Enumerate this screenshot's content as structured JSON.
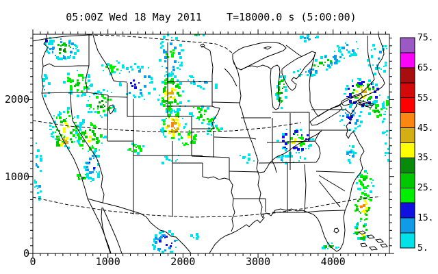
{
  "title": "05:00Z Wed 18 May 2011    T=18000.0 s (5:00:00)",
  "axes": {
    "x": {
      "min": 0,
      "max": 4750,
      "major_ticks": [
        0,
        1000,
        2000,
        3000,
        4000
      ],
      "major_labels": [
        "0",
        "1000",
        "2000",
        "3000",
        "4000"
      ],
      "minor_step": 100
    },
    "y": {
      "min": 0,
      "max": 2850,
      "major_ticks": [
        0,
        1000,
        2000
      ],
      "major_labels": [
        "0",
        "1000",
        "2000"
      ],
      "minor_step": 100
    }
  },
  "colorbar": {
    "tick_values": [
      5,
      15,
      25,
      35,
      45,
      55,
      65,
      75
    ],
    "tick_labels": [
      "5.",
      "15.",
      "25.",
      "35.",
      "45.",
      "55.",
      "65.",
      "75."
    ],
    "bin_edges": [
      5,
      10,
      15,
      20,
      25,
      30,
      35,
      40,
      45,
      50,
      55,
      60,
      65,
      70,
      75
    ],
    "bin_colors": [
      "#00E1E8",
      "#0F9BE6",
      "#1010E0",
      "#00EE00",
      "#00C800",
      "#0A8A0A",
      "#FFFF00",
      "#D4AF14",
      "#FB8612",
      "#FF0000",
      "#D40A0A",
      "#A80E0E",
      "#FA04FA",
      "#9B59C6"
    ]
  },
  "palette": {
    "c5": "#00E1E8",
    "c10": "#0F9BE6",
    "c15": "#1010E0",
    "c20": "#00EE00",
    "c25": "#00C800",
    "c30": "#0A8A0A",
    "c35": "#FFFF00",
    "c40": "#D4AF14",
    "c45": "#FB8612",
    "c50": "#FF0000",
    "c55": "#D40A0A",
    "c60": "#A80E0E",
    "c65": "#FA04FA",
    "c70": "#9B59C6"
  },
  "chart_data": {
    "type": "heatmap",
    "title": "05:00Z Wed 18 May 2011    T=18000.0 s (5:00:00)",
    "xlabel": "",
    "ylabel": "",
    "x_range": [
      0,
      4750
    ],
    "y_range": [
      0,
      2850
    ],
    "x_ticks": [
      0,
      1000,
      2000,
      3000,
      4000
    ],
    "y_ticks": [
      0,
      1000,
      2000
    ],
    "grid": false,
    "legend_position": "right-colorbar",
    "field": "radar reflectivity (dBZ) over CONUS state map",
    "colorbar_range": [
      5,
      75
    ],
    "colorbar_step": 5,
    "echo_regions": [
      {
        "name": "washington",
        "x": 383,
        "y": 2676,
        "max_dbz": 30
      },
      {
        "name": "oregon-idaho",
        "x": 700,
        "y": 2300,
        "max_dbz": 30
      },
      {
        "name": "nevada-utah",
        "x": 583,
        "y": 1517,
        "max_dbz": 40
      },
      {
        "name": "arizona-utah-border",
        "x": 775,
        "y": 1160,
        "max_dbz": 20
      },
      {
        "name": "montana",
        "x": 1368,
        "y": 2290,
        "max_dbz": 20
      },
      {
        "name": "wyoming-colorado-nebraska-band",
        "x": 1842,
        "y": 2052,
        "max_dbz": 48
      },
      {
        "name": "colorado-kansas",
        "x": 2051,
        "y": 1506,
        "max_dbz": 40
      },
      {
        "name": "new-mexico",
        "x": 1349,
        "y": 1383,
        "max_dbz": 25
      },
      {
        "name": "south-texas",
        "x": 1751,
        "y": 161,
        "max_dbz": 28
      },
      {
        "name": "lake-michigan-band",
        "x": 3301,
        "y": 2123,
        "max_dbz": 30
      },
      {
        "name": "lake-huron-diagonal-band",
        "x": 3830,
        "y": 2480,
        "max_dbz": 28
      },
      {
        "name": "ohio-valley",
        "x": 3483,
        "y": 1481,
        "max_dbz": 38
      },
      {
        "name": "northeast-cluster",
        "x": 4377,
        "y": 2105,
        "max_dbz": 45
      },
      {
        "name": "atlantic-coast-band",
        "x": 4395,
        "y": 625,
        "max_dbz": 48
      },
      {
        "name": "south-florida",
        "x": 3939,
        "y": 125,
        "max_dbz": 28
      },
      {
        "name": "maine-new-brunswick",
        "x": 4595,
        "y": 2542,
        "max_dbz": 15
      }
    ],
    "render_blobs": [
      {
        "cx": 90,
        "cy": 70,
        "w": 46,
        "h": 34,
        "n": 60,
        "colors": [
          "c5",
          "c10",
          "c25",
          "c30"
        ]
      },
      {
        "cx": 68,
        "cy": 58,
        "w": 16,
        "h": 14,
        "n": 12,
        "colors": [
          "c5",
          "c15"
        ]
      },
      {
        "cx": 112,
        "cy": 120,
        "w": 44,
        "h": 38,
        "n": 45,
        "colors": [
          "c5",
          "c20",
          "c25"
        ]
      },
      {
        "cx": 66,
        "cy": 122,
        "w": 10,
        "h": 36,
        "n": 14,
        "colors": [
          "c5",
          "c10"
        ]
      },
      {
        "cx": 146,
        "cy": 150,
        "w": 48,
        "h": 40,
        "n": 50,
        "colors": [
          "c5",
          "c20",
          "c30"
        ]
      },
      {
        "cx": 198,
        "cy": 118,
        "w": 56,
        "h": 56,
        "n": 40,
        "colors": [
          "c5",
          "c10",
          "c15"
        ]
      },
      {
        "cx": 162,
        "cy": 96,
        "w": 36,
        "h": 22,
        "n": 22,
        "colors": [
          "c5",
          "c20"
        ]
      },
      {
        "cx": 95,
        "cy": 185,
        "w": 48,
        "h": 58,
        "n": 75,
        "colors": [
          "c5",
          "c20",
          "c25",
          "c35"
        ]
      },
      {
        "cx": 92,
        "cy": 205,
        "w": 26,
        "h": 20,
        "n": 22,
        "colors": [
          "c25",
          "c35",
          "c40"
        ]
      },
      {
        "cx": 130,
        "cy": 198,
        "w": 44,
        "h": 54,
        "n": 65,
        "colors": [
          "c5",
          "c20",
          "c25",
          "c35"
        ]
      },
      {
        "cx": 133,
        "cy": 240,
        "w": 24,
        "h": 48,
        "n": 40,
        "colors": [
          "c5",
          "c10",
          "c15"
        ]
      },
      {
        "cx": 118,
        "cy": 257,
        "w": 14,
        "h": 12,
        "n": 10,
        "colors": [
          "c20",
          "c30"
        ]
      },
      {
        "cx": 54,
        "cy": 250,
        "w": 12,
        "h": 85,
        "n": 22,
        "colors": [
          "c5",
          "c10"
        ]
      },
      {
        "cx": 248,
        "cy": 80,
        "w": 38,
        "h": 66,
        "n": 50,
        "colors": [
          "c5",
          "c10",
          "c20"
        ]
      },
      {
        "cx": 248,
        "cy": 135,
        "w": 38,
        "h": 58,
        "n": 85,
        "colors": [
          "c5",
          "c20",
          "c25",
          "c35",
          "c40"
        ]
      },
      {
        "cx": 252,
        "cy": 182,
        "w": 38,
        "h": 44,
        "n": 70,
        "colors": [
          "c5",
          "c20",
          "c35",
          "c40",
          "c45"
        ]
      },
      {
        "cx": 294,
        "cy": 120,
        "w": 58,
        "h": 14,
        "n": 20,
        "colors": [
          "c5",
          "c10"
        ],
        "rot": 20
      },
      {
        "cx": 292,
        "cy": 164,
        "w": 56,
        "h": 26,
        "n": 35,
        "colors": [
          "c5",
          "c20",
          "c25"
        ],
        "rot": 38
      },
      {
        "cx": 312,
        "cy": 190,
        "w": 24,
        "h": 16,
        "n": 18,
        "colors": [
          "c5",
          "c20",
          "c30"
        ]
      },
      {
        "cx": 273,
        "cy": 201,
        "w": 26,
        "h": 22,
        "n": 25,
        "colors": [
          "c20",
          "c35"
        ]
      },
      {
        "cx": 196,
        "cy": 215,
        "w": 28,
        "h": 14,
        "n": 20,
        "colors": [
          "c5",
          "c20",
          "c25"
        ]
      },
      {
        "cx": 247,
        "cy": 231,
        "w": 36,
        "h": 12,
        "n": 12,
        "colors": [
          "c5"
        ]
      },
      {
        "cx": 240,
        "cy": 352,
        "w": 40,
        "h": 34,
        "n": 38,
        "colors": [
          "c5",
          "c10",
          "c15",
          "c25"
        ]
      },
      {
        "cx": 284,
        "cy": 344,
        "w": 12,
        "h": 10,
        "n": 7,
        "colors": [
          "c5"
        ]
      },
      {
        "cx": 410,
        "cy": 132,
        "w": 15,
        "h": 50,
        "n": 38,
        "colors": [
          "c5",
          "c25",
          "c30"
        ]
      },
      {
        "cx": 468,
        "cy": 92,
        "w": 88,
        "h": 22,
        "n": 50,
        "colors": [
          "c5",
          "c10",
          "c25"
        ],
        "rot": -23
      },
      {
        "cx": 508,
        "cy": 70,
        "w": 38,
        "h": 24,
        "n": 18,
        "colors": [
          "c5",
          "c10"
        ]
      },
      {
        "cx": 452,
        "cy": 54,
        "w": 38,
        "h": 10,
        "n": 12,
        "colors": [
          "c5",
          "c10"
        ]
      },
      {
        "cx": 430,
        "cy": 204,
        "w": 54,
        "h": 38,
        "n": 65,
        "colors": [
          "c5",
          "c15",
          "c20",
          "c35"
        ]
      },
      {
        "cx": 420,
        "cy": 231,
        "w": 48,
        "h": 12,
        "n": 16,
        "colors": [
          "c5",
          "c10"
        ]
      },
      {
        "cx": 362,
        "cy": 229,
        "w": 28,
        "h": 14,
        "n": 10,
        "colors": [
          "c5"
        ]
      },
      {
        "cx": 528,
        "cy": 134,
        "w": 56,
        "h": 42,
        "n": 85,
        "colors": [
          "c5",
          "c15",
          "c25",
          "c35",
          "c40"
        ]
      },
      {
        "cx": 512,
        "cy": 172,
        "w": 34,
        "h": 38,
        "n": 32,
        "colors": [
          "c5",
          "c10",
          "c15"
        ]
      },
      {
        "cx": 549,
        "cy": 160,
        "w": 24,
        "h": 28,
        "n": 22,
        "colors": [
          "c5",
          "c20",
          "c25"
        ]
      },
      {
        "cx": 532,
        "cy": 262,
        "w": 28,
        "h": 38,
        "n": 36,
        "colors": [
          "c5",
          "c20",
          "c25"
        ]
      },
      {
        "cx": 529,
        "cy": 300,
        "w": 24,
        "h": 42,
        "n": 48,
        "colors": [
          "c20",
          "c25",
          "c35",
          "c45"
        ]
      },
      {
        "cx": 527,
        "cy": 336,
        "w": 22,
        "h": 28,
        "n": 32,
        "colors": [
          "c5",
          "c25",
          "c35",
          "c45"
        ]
      },
      {
        "cx": 480,
        "cy": 358,
        "w": 28,
        "h": 12,
        "n": 16,
        "colors": [
          "c5",
          "c25"
        ]
      },
      {
        "cx": 552,
        "cy": 85,
        "w": 34,
        "h": 48,
        "n": 26,
        "colors": [
          "c5",
          "c10"
        ]
      },
      {
        "cx": 290,
        "cy": 47,
        "w": 22,
        "h": 9,
        "n": 8,
        "colors": [
          "c5",
          "c25"
        ]
      },
      {
        "cx": 562,
        "cy": 205,
        "w": 12,
        "h": 70,
        "n": 16,
        "colors": [
          "c5"
        ]
      },
      {
        "cx": 564,
        "cy": 152,
        "w": 12,
        "h": 36,
        "n": 12,
        "colors": [
          "c5",
          "c20"
        ]
      },
      {
        "cx": 510,
        "cy": 224,
        "w": 18,
        "h": 28,
        "n": 14,
        "colors": [
          "c5",
          "c10"
        ]
      },
      {
        "cx": 535,
        "cy": 385,
        "w": 28,
        "h": 12,
        "n": 9,
        "colors": [
          "c5"
        ]
      }
    ]
  }
}
